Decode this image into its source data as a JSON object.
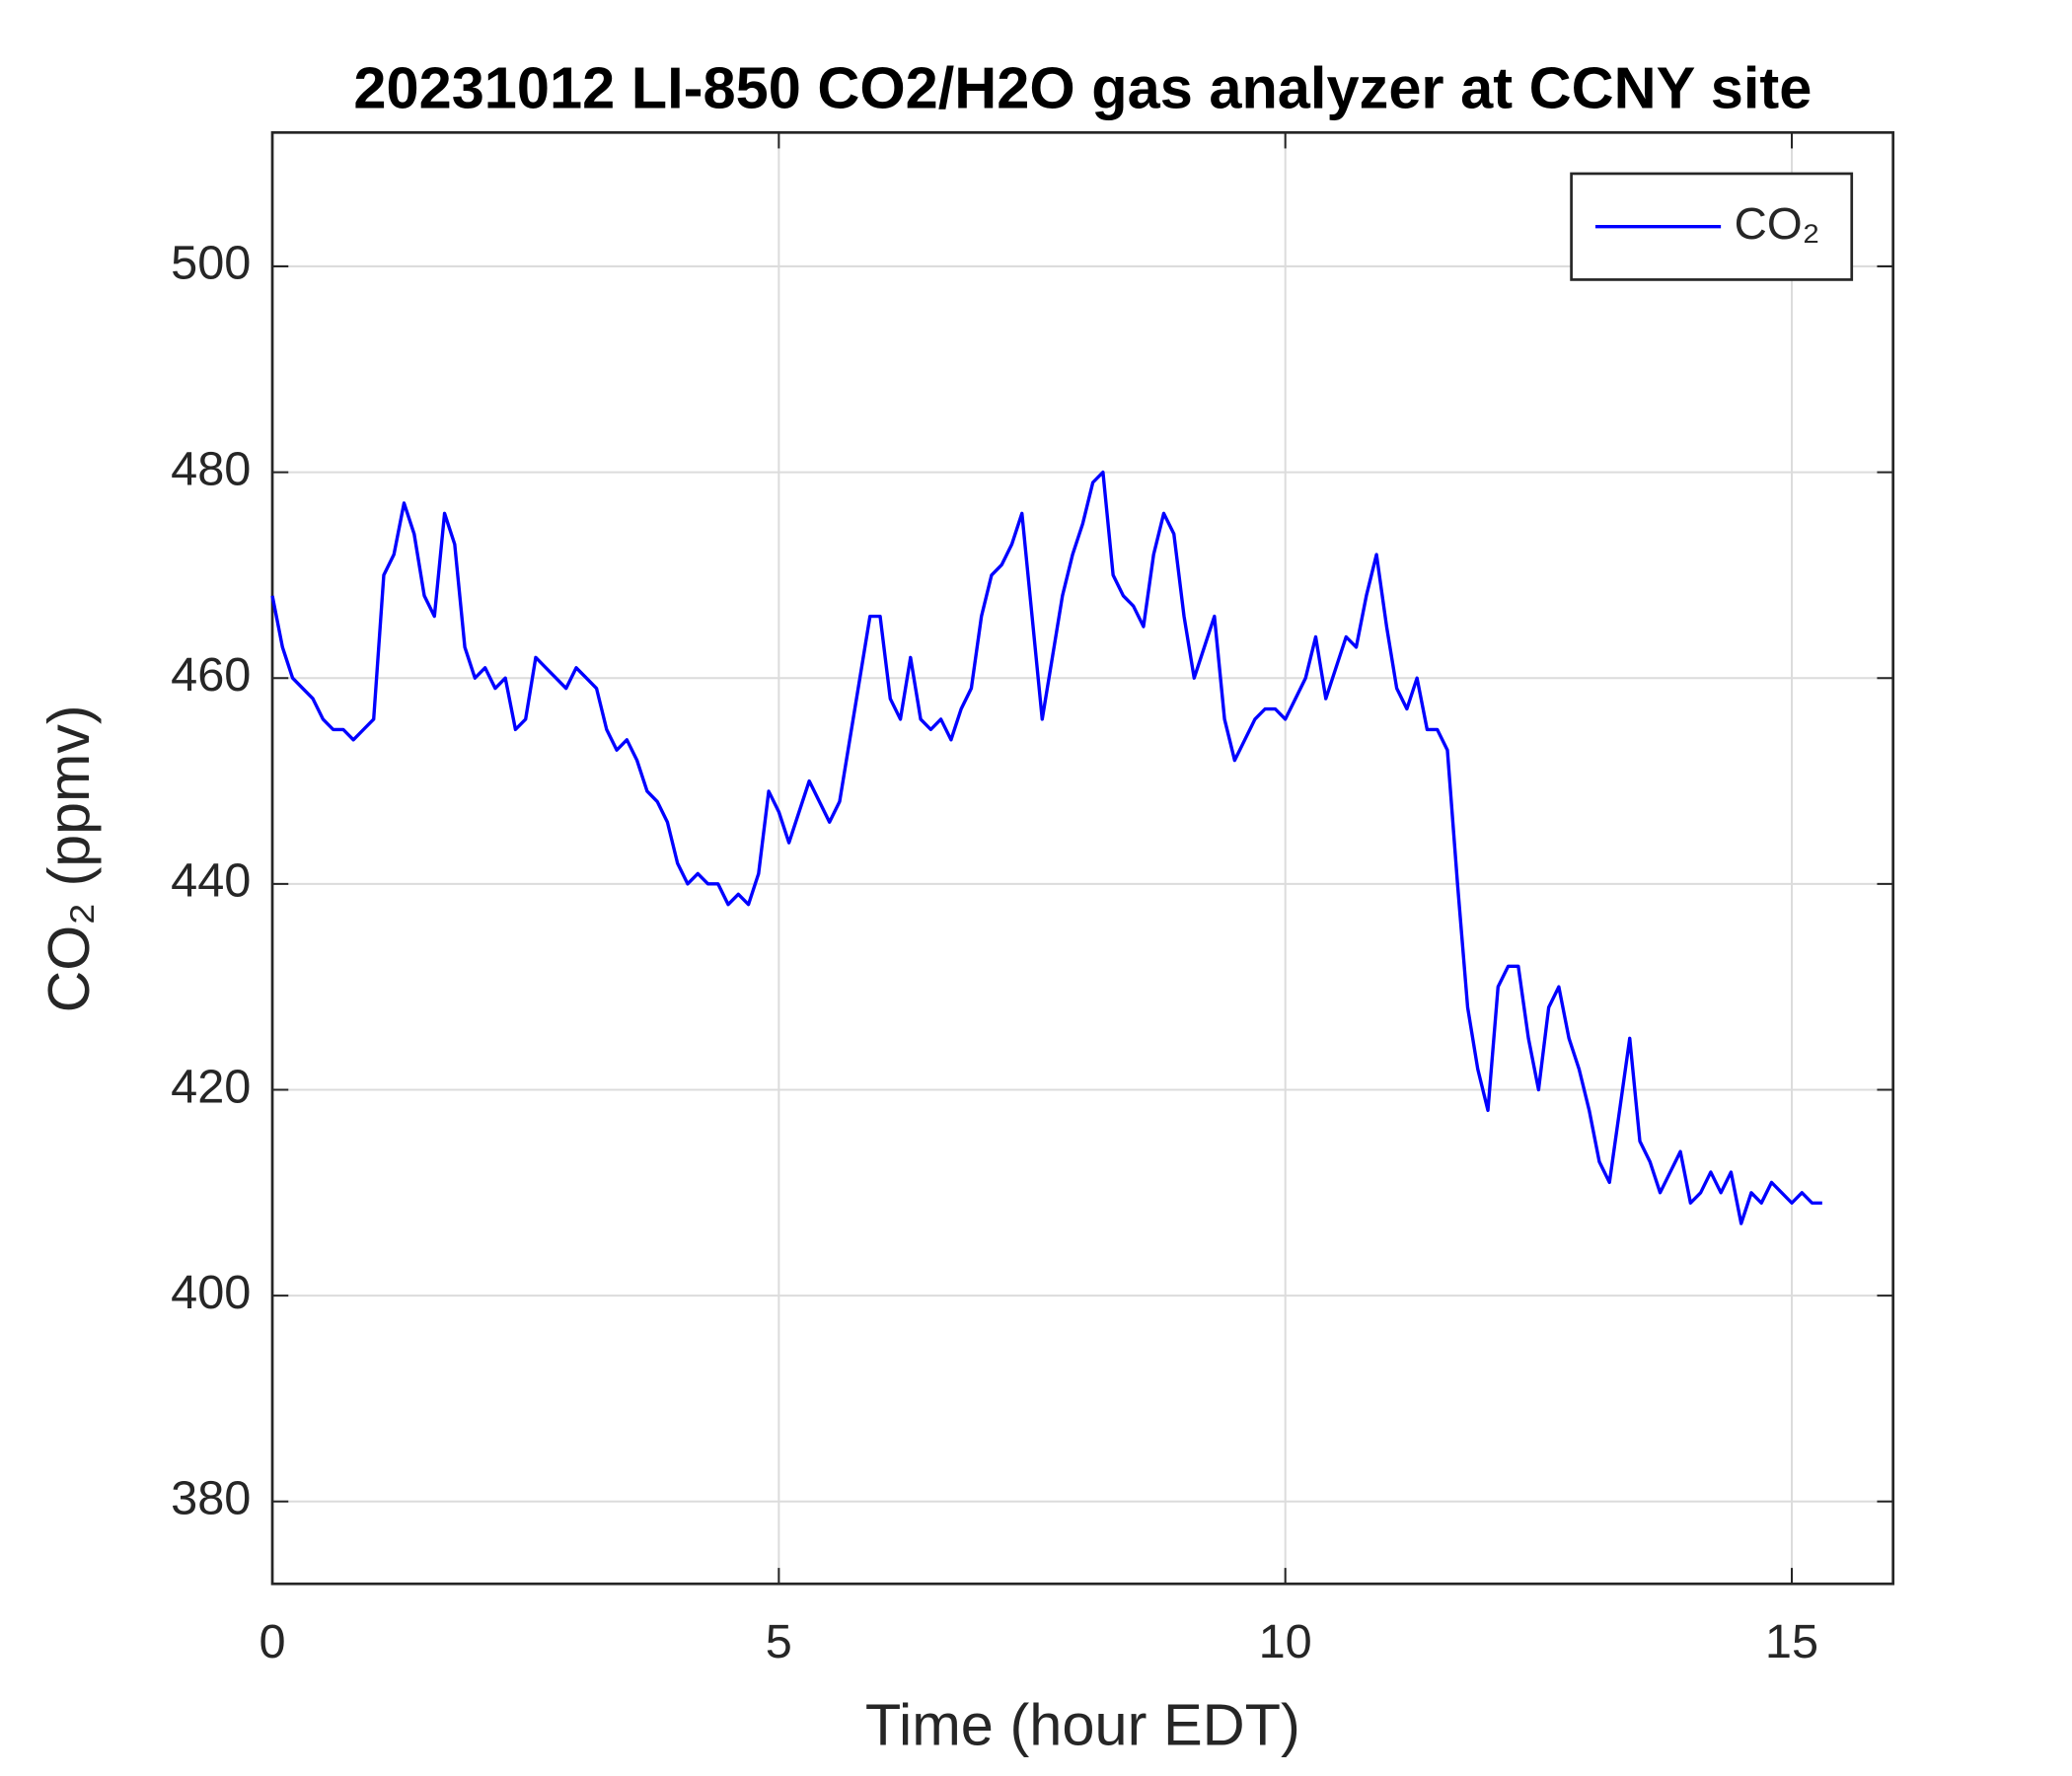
{
  "chart_data": {
    "type": "line",
    "title": "20231012 LI-850 CO2/H2O gas analyzer at CCNY site",
    "xlabel": "Time (hour EDT)",
    "ylabel": "CO₂ (ppmv)",
    "xlim": [
      0,
      16
    ],
    "ylim": [
      372,
      513
    ],
    "xticks": [
      0,
      5,
      10,
      15
    ],
    "yticks": [
      380,
      400,
      420,
      440,
      460,
      480,
      500
    ],
    "grid": true,
    "legend": "northeast",
    "x": [
      0.0,
      0.1,
      0.2,
      0.3,
      0.4,
      0.5,
      0.6,
      0.7,
      0.8,
      0.9,
      1.0,
      1.1,
      1.2,
      1.3,
      1.4,
      1.5,
      1.6,
      1.7,
      1.8,
      1.9,
      2.0,
      2.1,
      2.2,
      2.3,
      2.4,
      2.5,
      2.6,
      2.7,
      2.8,
      2.9,
      3.0,
      3.1,
      3.2,
      3.3,
      3.4,
      3.5,
      3.6,
      3.7,
      3.8,
      3.9,
      4.0,
      4.1,
      4.2,
      4.3,
      4.4,
      4.5,
      4.6,
      4.7,
      4.8,
      4.9,
      5.0,
      5.1,
      5.2,
      5.3,
      5.4,
      5.5,
      5.6,
      5.7,
      5.8,
      5.9,
      6.0,
      6.1,
      6.2,
      6.3,
      6.4,
      6.5,
      6.6,
      6.7,
      6.8,
      6.9,
      7.0,
      7.1,
      7.2,
      7.3,
      7.4,
      7.5,
      7.6,
      7.7,
      7.8,
      7.9,
      8.0,
      8.1,
      8.2,
      8.3,
      8.4,
      8.5,
      8.6,
      8.7,
      8.8,
      8.9,
      9.0,
      9.1,
      9.2,
      9.3,
      9.4,
      9.5,
      9.6,
      9.7,
      9.8,
      9.9,
      10.0,
      10.1,
      10.2,
      10.3,
      10.4,
      10.5,
      10.6,
      10.7,
      10.8,
      10.9,
      11.0,
      11.1,
      11.2,
      11.3,
      11.4,
      11.5,
      11.6,
      11.7,
      11.8,
      11.9,
      12.0,
      12.1,
      12.2,
      12.3,
      12.4,
      12.5,
      12.6,
      12.7,
      12.8,
      12.9,
      13.0,
      13.1,
      13.2,
      13.3,
      13.4,
      13.5,
      13.6,
      13.7,
      13.8,
      13.9,
      14.0,
      14.1,
      14.2,
      14.3,
      14.4,
      14.5,
      14.6,
      14.7,
      14.8,
      14.9,
      15.0,
      15.1,
      15.2,
      15.3
    ],
    "series": [
      {
        "name": "CO₂",
        "color": "#0000ff",
        "values": [
          468,
          463,
          460,
          459,
          458,
          456,
          455,
          455,
          454,
          455,
          456,
          470,
          472,
          477,
          474,
          468,
          466,
          476,
          473,
          463,
          460,
          461,
          459,
          460,
          455,
          456,
          462,
          461,
          460,
          459,
          461,
          460,
          459,
          455,
          453,
          454,
          452,
          449,
          448,
          446,
          442,
          440,
          441,
          440,
          440,
          438,
          439,
          438,
          441,
          449,
          447,
          444,
          447,
          450,
          448,
          446,
          448,
          454,
          460,
          466,
          466,
          458,
          456,
          462,
          456,
          455,
          456,
          454,
          457,
          459,
          466,
          470,
          471,
          473,
          476,
          466,
          456,
          462,
          468,
          472,
          475,
          479,
          480,
          470,
          468,
          467,
          465,
          472,
          476,
          474,
          466,
          460,
          463,
          466,
          456,
          452,
          454,
          456,
          457,
          457,
          456,
          458,
          460,
          464,
          458,
          461,
          464,
          463,
          468,
          472,
          465,
          459,
          457,
          460,
          455,
          455,
          453,
          440,
          428,
          422,
          418,
          430,
          432,
          432,
          425,
          420,
          428,
          430,
          425,
          422,
          418,
          413,
          411,
          418,
          425,
          415,
          413,
          410,
          412,
          414,
          409,
          410,
          412,
          410,
          412,
          407,
          410,
          409,
          411,
          410,
          409,
          410,
          409,
          409
        ]
      }
    ]
  }
}
